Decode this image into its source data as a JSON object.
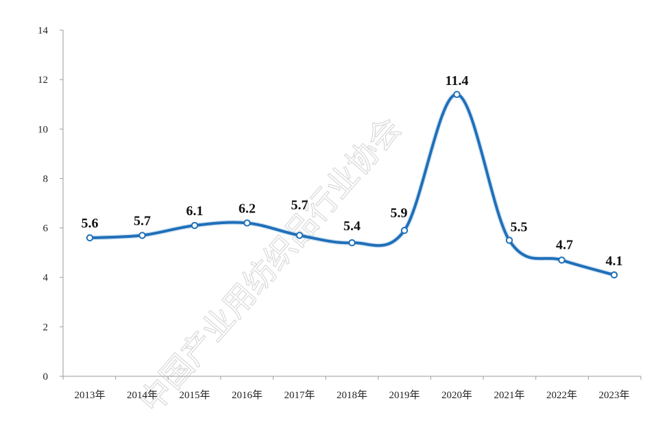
{
  "watermark": {
    "text": "中国产业用纺织品行业协会",
    "color": "#cfcfcf"
  },
  "chart_data": {
    "type": "line",
    "categories": [
      "2013年",
      "2014年",
      "2015年",
      "2016年",
      "2017年",
      "2018年",
      "2019年",
      "2020年",
      "2021年",
      "2022年",
      "2023年"
    ],
    "series": [
      {
        "values": [
          5.6,
          5.7,
          6.1,
          6.2,
          5.7,
          5.4,
          5.9,
          11.4,
          5.5,
          4.7,
          4.1
        ],
        "labels": [
          "5.6",
          "5.7",
          "6.1",
          "6.2",
          "5.7",
          "5.4",
          "5.9",
          "11.4",
          "5.5",
          "4.7",
          "4.1"
        ],
        "color": "#1f6fb8"
      }
    ],
    "ylim": [
      0,
      14
    ],
    "yticks": [
      0,
      2,
      4,
      6,
      8,
      10,
      12,
      14
    ],
    "ytick_labels": [
      "0",
      "2",
      "4",
      "6",
      "8",
      "10",
      "12",
      "14"
    ],
    "grid": false,
    "legend": "none",
    "title": "",
    "xlabel": "",
    "ylabel": ""
  }
}
